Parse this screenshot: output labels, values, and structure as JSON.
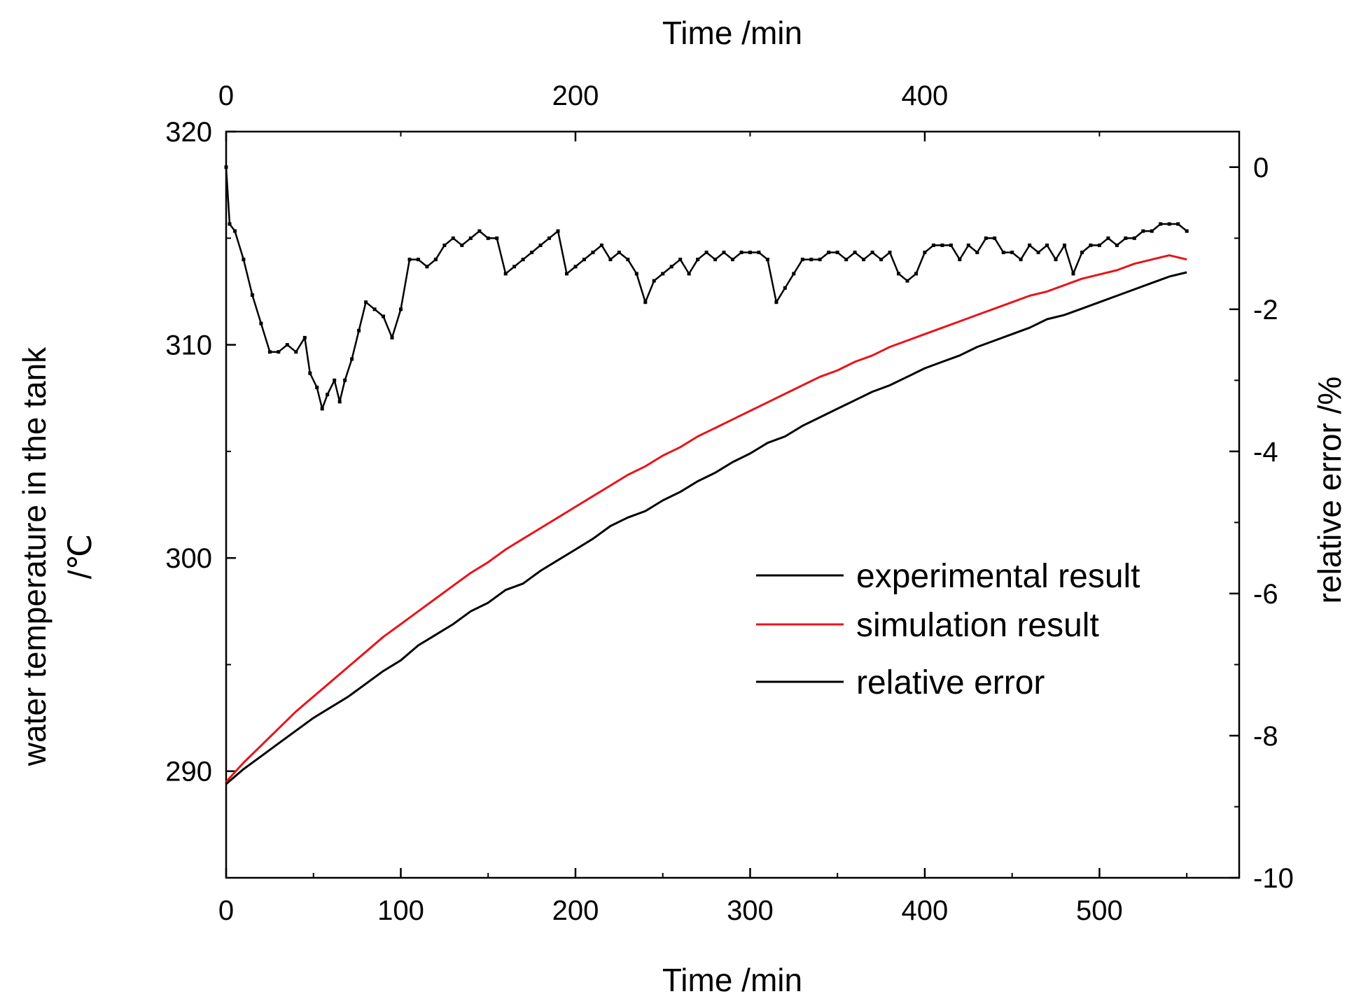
{
  "chart_data": {
    "type": "line",
    "title": "",
    "x_axis_bottom": {
      "label": "Time /min",
      "range": [
        0,
        580
      ],
      "ticks": [
        0,
        100,
        200,
        300,
        400,
        500
      ],
      "tick_labels": [
        "0",
        "100",
        "200",
        "300",
        "400",
        "500"
      ]
    },
    "x_axis_top": {
      "label": "Time /min",
      "range": [
        0,
        580
      ],
      "ticks": [
        0,
        200,
        400
      ],
      "tick_labels": [
        "0",
        "200",
        "400"
      ]
    },
    "y_axis_left": {
      "label": "water temperature in the tank",
      "unit": "/℃",
      "range": [
        285,
        320
      ],
      "ticks": [
        290,
        300,
        310,
        320
      ],
      "tick_labels": [
        "290",
        "300",
        "310",
        "320"
      ]
    },
    "y_axis_right": {
      "label": "relative error /%",
      "range": [
        -10,
        0.5
      ],
      "ticks": [
        0,
        -2,
        -4,
        -6,
        -8,
        -10
      ],
      "tick_labels": [
        "0",
        "-2",
        "-4",
        "-6",
        "-8",
        "-10"
      ]
    },
    "legend": {
      "position": "center-right",
      "entries": [
        {
          "label": "experimental result",
          "color": "#000000"
        },
        {
          "label": "simulation result",
          "color": "#e8141a"
        },
        {
          "label": "relative error",
          "color": "#000000"
        }
      ]
    },
    "series": [
      {
        "name": "experimental result",
        "axis": "left",
        "color": "#000000",
        "x": [
          0,
          10,
          20,
          30,
          40,
          50,
          60,
          70,
          80,
          90,
          100,
          110,
          120,
          130,
          140,
          150,
          160,
          170,
          180,
          190,
          200,
          210,
          220,
          230,
          240,
          250,
          260,
          270,
          280,
          290,
          300,
          310,
          320,
          330,
          340,
          350,
          360,
          370,
          380,
          390,
          400,
          410,
          420,
          430,
          440,
          450,
          460,
          470,
          480,
          490,
          500,
          510,
          520,
          530,
          540,
          550
        ],
        "y": [
          289.4,
          290.1,
          290.7,
          291.3,
          291.9,
          292.5,
          293.0,
          293.5,
          294.1,
          294.7,
          295.2,
          295.9,
          296.4,
          296.9,
          297.5,
          297.9,
          298.5,
          298.8,
          299.4,
          299.9,
          300.4,
          300.9,
          301.5,
          301.9,
          302.2,
          302.7,
          303.1,
          303.6,
          304.0,
          304.5,
          304.9,
          305.4,
          305.7,
          306.2,
          306.6,
          307.0,
          307.4,
          307.8,
          308.1,
          308.5,
          308.9,
          309.2,
          309.5,
          309.9,
          310.2,
          310.5,
          310.8,
          311.2,
          311.4,
          311.7,
          312.0,
          312.3,
          312.6,
          312.9,
          313.2,
          313.4
        ]
      },
      {
        "name": "simulation result",
        "axis": "left",
        "color": "#e8141a",
        "x": [
          0,
          10,
          20,
          30,
          40,
          50,
          60,
          70,
          80,
          90,
          100,
          110,
          120,
          130,
          140,
          150,
          160,
          170,
          180,
          190,
          200,
          210,
          220,
          230,
          240,
          250,
          260,
          270,
          280,
          290,
          300,
          310,
          320,
          330,
          340,
          350,
          360,
          370,
          380,
          390,
          400,
          410,
          420,
          430,
          440,
          450,
          460,
          470,
          480,
          490,
          500,
          510,
          520,
          530,
          540,
          550
        ],
        "y": [
          289.5,
          290.4,
          291.2,
          292.0,
          292.8,
          293.5,
          294.2,
          294.9,
          295.6,
          296.3,
          296.9,
          297.5,
          298.1,
          298.7,
          299.3,
          299.8,
          300.4,
          300.9,
          301.4,
          301.9,
          302.4,
          302.9,
          303.4,
          303.9,
          304.3,
          304.8,
          305.2,
          305.7,
          306.1,
          306.5,
          306.9,
          307.3,
          307.7,
          308.1,
          308.5,
          308.8,
          309.2,
          309.5,
          309.9,
          310.2,
          310.5,
          310.8,
          311.1,
          311.4,
          311.7,
          312.0,
          312.3,
          312.5,
          312.8,
          313.1,
          313.3,
          313.5,
          313.8,
          314.0,
          314.2,
          314.0
        ]
      },
      {
        "name": "relative error",
        "axis": "right",
        "color": "#000000",
        "x": [
          0,
          2,
          5,
          10,
          15,
          20,
          25,
          30,
          35,
          40,
          45,
          48,
          52,
          55,
          58,
          62,
          65,
          68,
          72,
          76,
          80,
          85,
          90,
          95,
          100,
          105,
          110,
          115,
          120,
          125,
          130,
          135,
          140,
          145,
          150,
          155,
          160,
          165,
          170,
          175,
          180,
          185,
          190,
          195,
          200,
          205,
          210,
          215,
          220,
          225,
          230,
          235,
          240,
          245,
          250,
          255,
          260,
          265,
          270,
          275,
          280,
          285,
          290,
          295,
          300,
          305,
          310,
          315,
          320,
          325,
          330,
          335,
          340,
          345,
          350,
          355,
          360,
          365,
          370,
          375,
          380,
          385,
          390,
          395,
          400,
          405,
          410,
          415,
          420,
          425,
          430,
          435,
          440,
          445,
          450,
          455,
          460,
          465,
          470,
          475,
          480,
          485,
          490,
          495,
          500,
          505,
          510,
          515,
          520,
          525,
          530,
          535,
          540,
          545,
          550
        ],
        "y": [
          0.0,
          -0.8,
          -0.9,
          -1.3,
          -1.8,
          -2.2,
          -2.6,
          -2.6,
          -2.5,
          -2.6,
          -2.4,
          -2.9,
          -3.1,
          -3.4,
          -3.2,
          -3.0,
          -3.3,
          -3.0,
          -2.7,
          -2.3,
          -1.9,
          -2.0,
          -2.1,
          -2.4,
          -2.0,
          -1.3,
          -1.3,
          -1.4,
          -1.3,
          -1.1,
          -1.0,
          -1.1,
          -1.0,
          -0.9,
          -1.0,
          -1.0,
          -1.5,
          -1.4,
          -1.3,
          -1.2,
          -1.1,
          -1.0,
          -0.9,
          -1.5,
          -1.4,
          -1.3,
          -1.2,
          -1.1,
          -1.3,
          -1.2,
          -1.3,
          -1.5,
          -1.9,
          -1.6,
          -1.5,
          -1.4,
          -1.3,
          -1.5,
          -1.3,
          -1.2,
          -1.3,
          -1.2,
          -1.3,
          -1.2,
          -1.2,
          -1.2,
          -1.3,
          -1.9,
          -1.7,
          -1.5,
          -1.3,
          -1.3,
          -1.3,
          -1.2,
          -1.2,
          -1.3,
          -1.2,
          -1.3,
          -1.2,
          -1.3,
          -1.2,
          -1.5,
          -1.6,
          -1.5,
          -1.2,
          -1.1,
          -1.1,
          -1.1,
          -1.3,
          -1.1,
          -1.2,
          -1.0,
          -1.0,
          -1.2,
          -1.2,
          -1.3,
          -1.1,
          -1.2,
          -1.1,
          -1.3,
          -1.1,
          -1.5,
          -1.2,
          -1.1,
          -1.1,
          -1.0,
          -1.1,
          -1.0,
          -1.0,
          -0.9,
          -0.9,
          -0.8,
          -0.8,
          -0.8,
          -0.9
        ]
      }
    ]
  }
}
